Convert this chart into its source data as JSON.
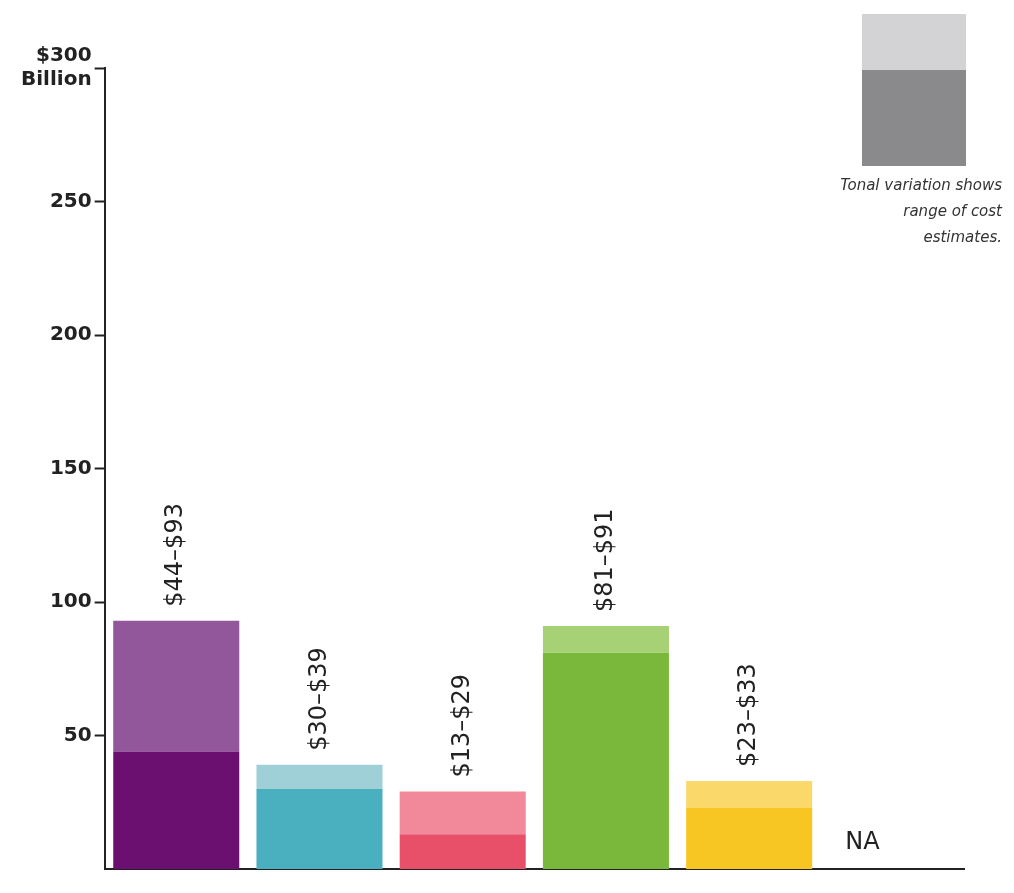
{
  "chart_data": {
    "type": "bar",
    "stacked": true,
    "categories": [
      null,
      null,
      null,
      null,
      null,
      null
    ],
    "series": [
      {
        "colors": [
          "#6b1070",
          "#4aafbf",
          "#e8506a",
          "#7ab83c",
          "#f8c623",
          "#cccccc"
        ],
        "values": [
          44,
          30,
          13,
          81,
          23,
          null
        ]
      },
      {
        "colors": [
          "#92579a",
          "#9fd0d8",
          "#f2899a",
          "#a6d174",
          "#fbd86a",
          "#cccccc"
        ],
        "values": [
          49,
          9,
          16,
          10,
          10,
          null
        ],
        "value_labels": [
          "$44–$93",
          "$30–$39",
          "$13–$29",
          "$81–$91",
          "$23–$33",
          "NA"
        ]
      }
    ],
    "ylim": [
      0,
      300
    ],
    "yticks": [
      50,
      100,
      150,
      200,
      250,
      {
        "value": 300,
        "label": "$300 Billion"
      }
    ],
    "grid": false,
    "legend": false,
    "tick_labels": "y",
    "annotations": [
      "Tonal variation shows range of cost estimates."
    ]
  }
}
